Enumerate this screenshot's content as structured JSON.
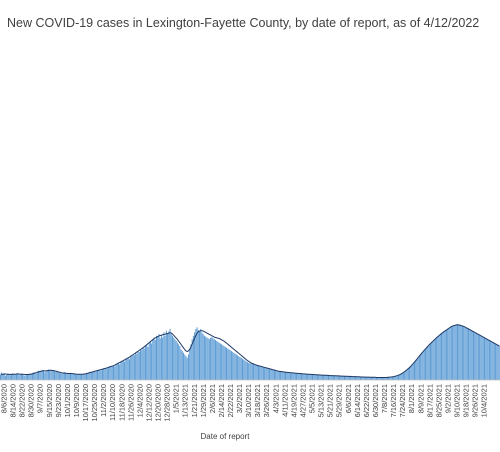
{
  "chart_data": {
    "type": "bar",
    "title": "New COVID-19 cases in Lexington-Fayette County, by date of report, as of 4/12/2022",
    "xlabel": "Date of report",
    "ylabel": "",
    "ylim": [
      0,
      2000
    ],
    "bar_color": "#5b9bd5",
    "line_color": "#1f3864",
    "x_tick_labels": [
      "8/6/2020",
      "8/14/2020",
      "8/22/2020",
      "8/30/2020",
      "9/7/2020",
      "9/15/2020",
      "9/23/2020",
      "10/1/2020",
      "10/9/2020",
      "10/17/2020",
      "10/25/2020",
      "11/2/2020",
      "11/10/2020",
      "11/18/2020",
      "11/26/2020",
      "12/4/2020",
      "12/12/2020",
      "12/20/2020",
      "12/28/2020",
      "1/5/2021",
      "1/13/2021",
      "1/21/2021",
      "1/29/2021",
      "2/6/2021",
      "2/14/2021",
      "2/22/2021",
      "3/2/2021",
      "3/10/2021",
      "3/18/2021",
      "3/26/2021",
      "4/3/2021",
      "4/11/2021",
      "4/19/2021",
      "4/27/2021",
      "5/5/2021",
      "5/13/2021",
      "5/21/2021",
      "5/29/2021",
      "6/6/2021",
      "6/14/2021",
      "6/22/2021",
      "6/30/2021",
      "7/8/2021",
      "7/16/2021",
      "7/24/2021",
      "8/1/2021",
      "8/9/2021",
      "8/17/2021",
      "8/25/2021",
      "9/2/2021",
      "9/10/2021",
      "9/18/2021",
      "9/26/2021",
      "10/4/2021"
    ],
    "series": [
      {
        "type": "bar",
        "values": [
          30,
          45,
          35,
          40,
          25,
          30,
          38,
          32,
          28,
          35,
          40,
          30,
          33,
          36,
          42,
          29,
          31,
          37,
          34,
          28,
          26,
          32,
          30,
          35,
          38,
          33,
          40,
          45,
          42,
          38,
          50,
          55,
          48,
          52,
          60,
          58,
          45,
          50,
          55,
          62,
          58,
          54,
          60,
          57,
          52,
          48,
          50,
          45,
          42,
          40,
          38,
          44,
          46,
          40,
          36,
          35,
          38,
          42,
          40,
          37,
          35,
          33,
          30,
          34,
          36,
          32,
          31,
          35,
          38,
          36,
          40,
          42,
          45,
          48,
          44,
          50,
          52,
          48,
          55,
          58,
          60,
          62,
          56,
          65,
          68,
          70,
          72,
          66,
          75,
          80,
          78,
          82,
          85,
          80,
          90,
          95,
          100,
          92,
          105,
          110,
          115,
          108,
          120,
          125,
          130,
          122,
          135,
          140,
          150,
          145,
          160,
          155,
          170,
          165,
          180,
          175,
          190,
          185,
          200,
          210,
          195,
          220,
          230,
          215,
          240,
          250,
          235,
          260,
          255,
          270,
          245,
          265,
          250,
          280,
          260,
          290,
          275,
          285,
          300,
          270,
          260,
          250,
          240,
          230,
          220,
          210,
          200,
          180,
          170,
          160,
          150,
          140,
          130,
          150,
          180,
          210,
          240,
          260,
          280,
          300,
          310,
          295,
          285,
          300,
          280,
          270,
          260,
          255,
          250,
          245,
          240,
          248,
          252,
          246,
          240,
          235,
          230,
          225,
          220,
          215,
          210,
          205,
          200,
          195,
          190,
          185,
          180,
          175,
          170,
          165,
          160,
          155,
          150,
          145,
          140,
          135,
          130,
          125,
          120,
          115,
          110,
          105,
          100,
          98,
          96,
          94,
          92,
          90,
          88,
          86,
          84,
          82,
          80,
          78,
          76,
          74,
          72,
          70,
          68,
          66,
          64,
          62,
          60,
          58,
          56,
          54,
          52,
          50,
          50,
          48,
          48,
          46,
          46,
          45,
          44,
          44,
          43,
          42,
          42,
          41,
          40,
          40,
          39,
          38,
          38,
          37,
          36,
          36,
          35,
          35,
          34,
          34,
          33,
          33,
          32,
          32,
          31,
          31,
          30,
          30,
          30,
          29,
          29,
          28,
          28,
          28,
          27,
          27,
          26,
          26,
          26,
          25,
          25,
          25,
          24,
          24,
          24,
          23,
          23,
          23,
          22,
          22,
          22,
          21,
          21,
          21,
          20,
          20,
          20,
          20,
          19,
          19,
          19,
          18,
          18,
          18,
          18,
          17,
          17,
          17,
          17,
          16,
          16,
          16,
          16,
          16,
          15,
          15,
          15,
          15,
          15,
          15,
          15,
          15,
          15,
          16,
          16,
          17,
          18,
          19,
          20,
          22,
          24,
          26,
          29,
          32,
          36,
          40,
          45,
          50,
          56,
          62,
          68,
          75,
          82,
          90,
          98,
          106,
          115,
          124,
          133,
          142,
          151,
          160,
          168,
          176,
          184,
          192,
          200,
          208,
          215,
          222,
          229,
          236,
          243,
          250,
          256,
          262,
          268,
          274,
          280,
          285,
          290,
          295,
          300,
          305,
          310,
          314,
          318,
          320,
          322,
          324,
          325,
          324,
          322,
          320,
          318,
          315,
          312,
          308,
          304,
          300,
          296,
          292,
          288,
          284,
          280,
          276,
          272,
          268,
          264,
          260,
          256,
          252,
          248,
          244,
          240,
          236,
          232,
          228,
          224,
          220,
          216,
          212,
          208,
          204,
          200
        ]
      },
      {
        "type": "line",
        "values": [
          33,
          34,
          34,
          35,
          35,
          34,
          34,
          33,
          33,
          33,
          34,
          34,
          34,
          35,
          35,
          35,
          34,
          34,
          34,
          33,
          32,
          32,
          32,
          33,
          34,
          35,
          37,
          39,
          41,
          43,
          46,
          48,
          50,
          52,
          53,
          54,
          54,
          54,
          55,
          56,
          57,
          57,
          56,
          55,
          54,
          52,
          50,
          48,
          46,
          44,
          42,
          41,
          41,
          40,
          39,
          38,
          38,
          38,
          38,
          37,
          36,
          35,
          34,
          34,
          34,
          34,
          34,
          34,
          35,
          36,
          38,
          40,
          42,
          44,
          46,
          48,
          50,
          52,
          54,
          56,
          58,
          60,
          62,
          64,
          66,
          68,
          70,
          72,
          75,
          78,
          80,
          82,
          85,
          88,
          92,
          96,
          100,
          103,
          107,
          111,
          115,
          119,
          123,
          127,
          131,
          135,
          140,
          145,
          150,
          155,
          160,
          165,
          170,
          175,
          180,
          185,
          190,
          196,
          202,
          208,
          214,
          220,
          226,
          232,
          238,
          244,
          248,
          252,
          256,
          260,
          262,
          264,
          266,
          268,
          270,
          272,
          274,
          276,
          278,
          276,
          270,
          262,
          254,
          246,
          238,
          228,
          218,
          208,
          198,
          188,
          178,
          170,
          168,
          172,
          182,
          196,
          212,
          230,
          248,
          264,
          276,
          284,
          288,
          290,
          290,
          288,
          284,
          280,
          276,
          272,
          268,
          264,
          260,
          256,
          252,
          250,
          248,
          246,
          244,
          240,
          236,
          232,
          228,
          222,
          216,
          210,
          204,
          198,
          192,
          186,
          180,
          174,
          168,
          162,
          156,
          150,
          144,
          138,
          132,
          126,
          120,
          114,
          109,
          104,
          100,
          97,
          94,
          91,
          88,
          86,
          84,
          82,
          80,
          78,
          76,
          74,
          72,
          70,
          68,
          66,
          64,
          62,
          60,
          58,
          56,
          54,
          52,
          51,
          50,
          49,
          48,
          47,
          46,
          45,
          44,
          44,
          43,
          42,
          42,
          41,
          40,
          40,
          39,
          38,
          38,
          37,
          36,
          36,
          35,
          35,
          34,
          34,
          33,
          33,
          32,
          32,
          31,
          31,
          30,
          30,
          30,
          29,
          29,
          28,
          28,
          28,
          27,
          27,
          26,
          26,
          26,
          25,
          25,
          25,
          24,
          24,
          24,
          23,
          23,
          23,
          22,
          22,
          22,
          21,
          21,
          21,
          20,
          20,
          20,
          20,
          19,
          19,
          19,
          18,
          18,
          18,
          18,
          17,
          17,
          17,
          17,
          16,
          16,
          16,
          16,
          16,
          15,
          15,
          15,
          15,
          15,
          15,
          15,
          15,
          15,
          16,
          16,
          17,
          18,
          19,
          20,
          22,
          24,
          26,
          29,
          32,
          36,
          40,
          45,
          50,
          56,
          62,
          68,
          75,
          82,
          90,
          98,
          106,
          115,
          124,
          133,
          142,
          151,
          160,
          168,
          176,
          184,
          192,
          200,
          208,
          215,
          222,
          229,
          236,
          243,
          250,
          256,
          262,
          268,
          274,
          280,
          285,
          290,
          295,
          300,
          305,
          310,
          314,
          318,
          320,
          322,
          324,
          325,
          324,
          322,
          320,
          318,
          315,
          312,
          308,
          304,
          300,
          296,
          292,
          288,
          284,
          280,
          276,
          272,
          268,
          264,
          260,
          256,
          252,
          248,
          244,
          240,
          236,
          232,
          228,
          224,
          220,
          216,
          212,
          208,
          204,
          200
        ]
      }
    ]
  }
}
